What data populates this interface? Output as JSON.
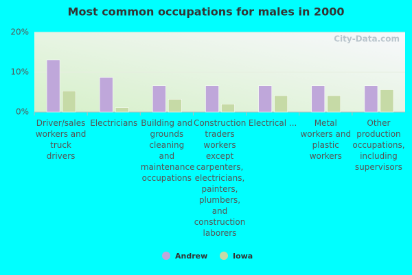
{
  "chart_data": {
    "type": "bar",
    "title": "Most common occupations for males in 2000",
    "watermark": "City-Data.com",
    "categories": [
      "Driver/sales workers and truck drivers",
      "Electricians",
      "Building and grounds cleaning and maintenance occupations",
      "Construction traders workers except carpenters, electricians, painters, plumbers, and construction laborers",
      "Electrical ...",
      "Metal workers and plastic workers",
      "Other production occupations, including supervisors"
    ],
    "series": [
      {
        "name": "Andrew",
        "color": "#bfa7da",
        "values": [
          13.1,
          8.7,
          6.6,
          6.6,
          6.6,
          6.6,
          6.6
        ]
      },
      {
        "name": "Iowa",
        "color": "#c6daa6",
        "values": [
          5.3,
          1.1,
          3.2,
          2.0,
          4.1,
          4.1,
          5.6
        ]
      }
    ],
    "ylim": [
      0,
      20
    ],
    "yticks": [
      {
        "value": 0,
        "label": "0%"
      },
      {
        "value": 10,
        "label": "10%"
      },
      {
        "value": 20,
        "label": "20%"
      }
    ],
    "grid": true
  }
}
